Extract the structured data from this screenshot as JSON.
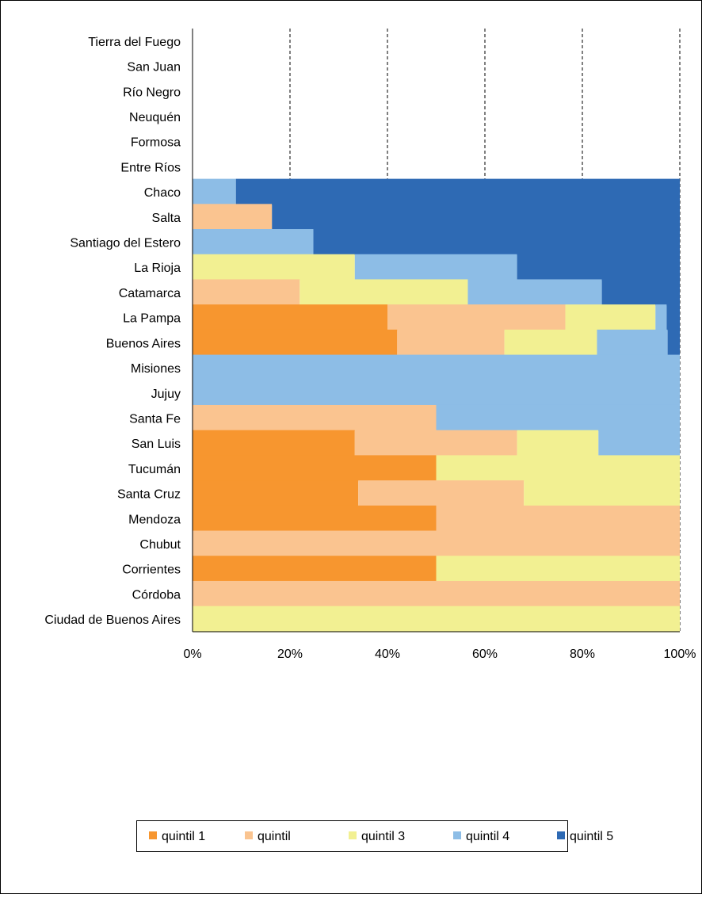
{
  "chart_data": {
    "type": "bar",
    "orientation": "horizontal",
    "stacked": "percent",
    "title": "",
    "xlabel": "",
    "ylabel": "",
    "xlim": [
      0,
      100
    ],
    "x_ticks": [
      "0%",
      "20%",
      "40%",
      "60%",
      "80%",
      "100%"
    ],
    "grid": "vertical dashed",
    "legend_position": "bottom",
    "categories": [
      "Tierra del Fuego",
      "San Juan",
      "Río Negro",
      "Neuquén",
      "Formosa",
      "Entre Ríos",
      "Chaco",
      "Salta",
      "Santiago del Estero",
      "La Rioja",
      "Catamarca",
      "La Pampa",
      "Buenos Aires",
      "Misiones",
      "Jujuy",
      "Santa Fe",
      "San Luis",
      "Tucumán",
      "Santa Cruz",
      "Mendoza",
      "Chubut",
      "Corrientes",
      "Córdoba",
      "Ciudad de Buenos Aires"
    ],
    "series": [
      {
        "name": "quintil 1",
        "color": "#F7962F",
        "values": [
          0,
          0,
          0,
          0,
          0,
          0,
          0,
          0,
          0,
          0,
          0,
          40,
          42,
          0,
          0,
          0,
          33.3,
          50,
          34,
          50,
          0,
          50,
          0,
          0
        ]
      },
      {
        "name": "quintil",
        "color": "#FAC490",
        "values": [
          0,
          0,
          0,
          0,
          0,
          0,
          0,
          16.3,
          0,
          0,
          22,
          36.5,
          22,
          0,
          0,
          50,
          33.3,
          0,
          34,
          50,
          100,
          0,
          100,
          0
        ]
      },
      {
        "name": "quintil 3",
        "color": "#F2F092",
        "values": [
          0,
          0,
          0,
          0,
          0,
          0,
          0,
          0,
          0,
          33.3,
          34.5,
          18.5,
          19,
          0,
          0,
          0,
          16.7,
          50,
          32,
          0,
          0,
          50,
          0,
          100
        ]
      },
      {
        "name": "quintil 4",
        "color": "#8DBDE6",
        "values": [
          0,
          0,
          0,
          0,
          0,
          0,
          8.9,
          0,
          24.8,
          33.3,
          27.5,
          2.3,
          14.5,
          100,
          100,
          50,
          16.7,
          0,
          0,
          0,
          0,
          0,
          0,
          0
        ]
      },
      {
        "name": "quintil 5",
        "color": "#2E6AB4",
        "values": [
          0,
          0,
          0,
          0,
          0,
          0,
          91.1,
          83.7,
          75.2,
          33.4,
          16,
          2.7,
          2.5,
          0,
          0,
          0,
          0,
          0,
          0,
          0,
          0,
          0,
          0,
          0
        ]
      }
    ]
  }
}
